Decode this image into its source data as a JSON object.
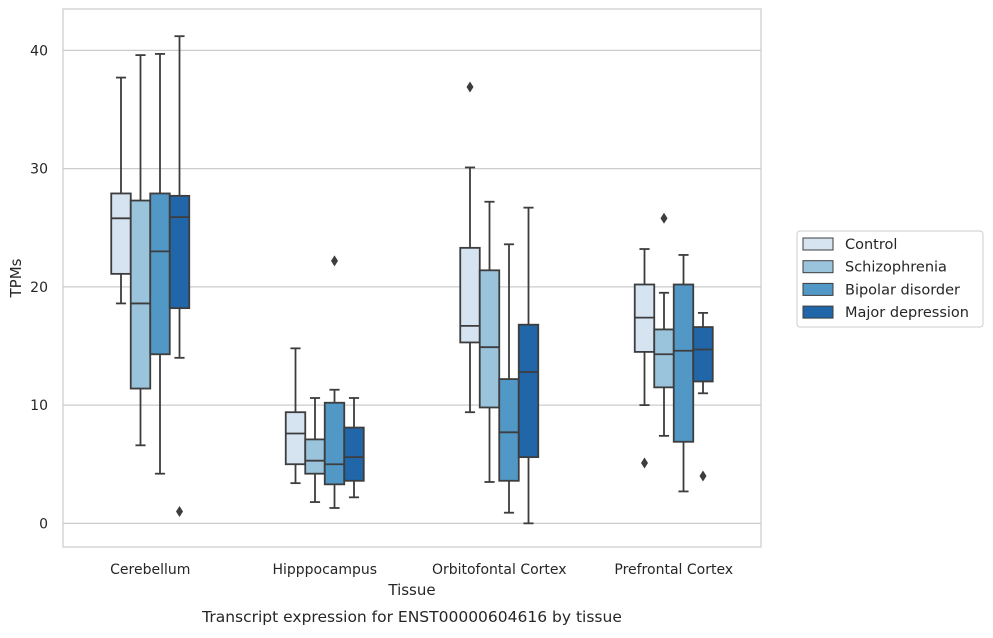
{
  "chart_data": {
    "type": "box",
    "caption": "Transcript expression for ENST00000604616 by tissue",
    "xlabel": "Tissue",
    "ylabel": "TPMs",
    "ylim": [
      -2,
      43.5
    ],
    "yticks": [
      0,
      10,
      20,
      30,
      40
    ],
    "grid": "horizontal",
    "legend_position": "right",
    "categories": [
      "Cerebellum",
      "Hipppocampus",
      "Orbitofontal Cortex",
      "Prefrontal Cortex"
    ],
    "series": [
      {
        "name": "Control",
        "color": "#d6e4f2",
        "boxes": [
          {
            "whisker_low": 18.6,
            "q1": 21.1,
            "median": 25.8,
            "q3": 27.9,
            "whisker_high": 37.7,
            "outliers": []
          },
          {
            "whisker_low": 3.4,
            "q1": 5.0,
            "median": 7.6,
            "q3": 9.4,
            "whisker_high": 14.8,
            "outliers": []
          },
          {
            "whisker_low": 9.4,
            "q1": 15.3,
            "median": 16.7,
            "q3": 23.3,
            "whisker_high": 30.1,
            "outliers": [
              36.9
            ]
          },
          {
            "whisker_low": 10.0,
            "q1": 14.5,
            "median": 17.4,
            "q3": 20.2,
            "whisker_high": 23.2,
            "outliers": [
              5.1
            ]
          }
        ]
      },
      {
        "name": "Schizophrenia",
        "color": "#9ac3dc",
        "boxes": [
          {
            "whisker_low": 6.6,
            "q1": 11.4,
            "median": 18.6,
            "q3": 27.3,
            "whisker_high": 39.6,
            "outliers": []
          },
          {
            "whisker_low": 1.8,
            "q1": 4.2,
            "median": 5.3,
            "q3": 7.1,
            "whisker_high": 10.6,
            "outliers": []
          },
          {
            "whisker_low": 3.5,
            "q1": 9.8,
            "median": 14.9,
            "q3": 21.4,
            "whisker_high": 27.2,
            "outliers": []
          },
          {
            "whisker_low": 7.4,
            "q1": 11.5,
            "median": 14.3,
            "q3": 16.4,
            "whisker_high": 19.5,
            "outliers": [
              25.8
            ]
          }
        ]
      },
      {
        "name": "Bipolar disorder",
        "color": "#5198c6",
        "boxes": [
          {
            "whisker_low": 4.2,
            "q1": 14.3,
            "median": 23.0,
            "q3": 27.9,
            "whisker_high": 39.7,
            "outliers": []
          },
          {
            "whisker_low": 1.3,
            "q1": 3.3,
            "median": 5.0,
            "q3": 10.2,
            "whisker_high": 11.3,
            "outliers": [
              22.2
            ]
          },
          {
            "whisker_low": 0.9,
            "q1": 3.6,
            "median": 7.7,
            "q3": 12.2,
            "whisker_high": 23.6,
            "outliers": []
          },
          {
            "whisker_low": 2.7,
            "q1": 6.9,
            "median": 14.6,
            "q3": 20.2,
            "whisker_high": 22.7,
            "outliers": []
          }
        ]
      },
      {
        "name": "Major depression",
        "color": "#2066a8",
        "boxes": [
          {
            "whisker_low": 14.0,
            "q1": 18.2,
            "median": 25.9,
            "q3": 27.7,
            "whisker_high": 41.2,
            "outliers": [
              1.0
            ]
          },
          {
            "whisker_low": 2.2,
            "q1": 3.6,
            "median": 5.6,
            "q3": 8.1,
            "whisker_high": 10.6,
            "outliers": []
          },
          {
            "whisker_low": 0.0,
            "q1": 5.6,
            "median": 12.8,
            "q3": 16.8,
            "whisker_high": 26.7,
            "outliers": []
          },
          {
            "whisker_low": 11.0,
            "q1": 12.0,
            "median": 14.7,
            "q3": 16.6,
            "whisker_high": 17.8,
            "outliers": [
              4.0
            ]
          }
        ]
      }
    ]
  }
}
